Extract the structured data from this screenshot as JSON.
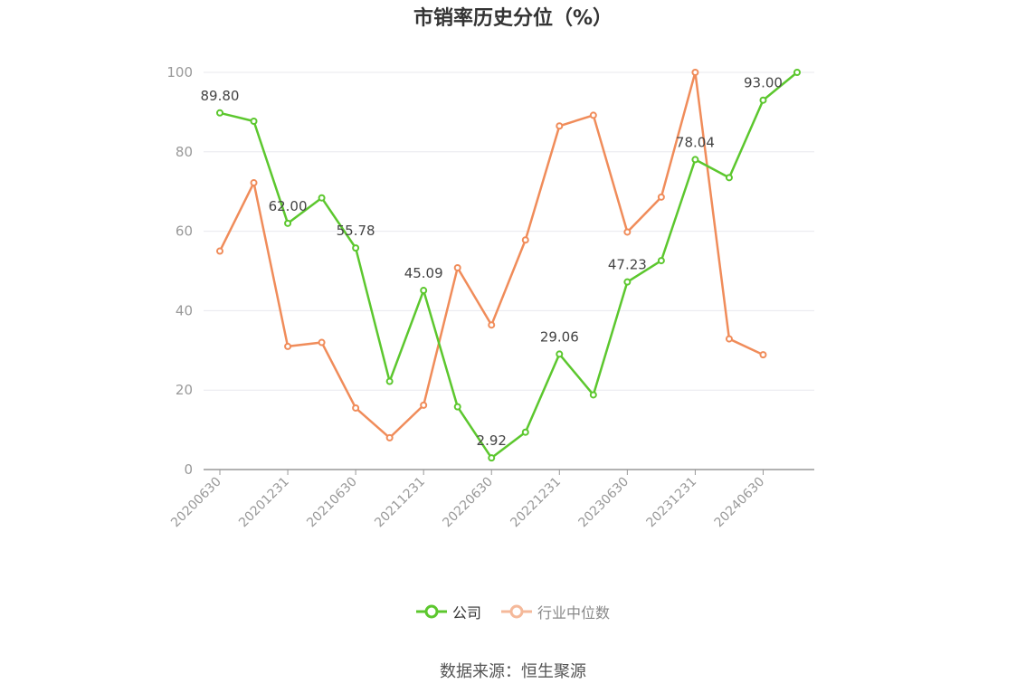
{
  "title": "市销率历史分位（%）",
  "source": "数据来源：恒生聚源",
  "colors": {
    "company": "#5cc72e",
    "industry": "#f08c5a",
    "industry_legend": "#f5b99a",
    "grid": "#e8e8ee",
    "axis": "#999999",
    "tick_text": "#999999",
    "label_text": "#444444"
  },
  "chart_data": {
    "type": "line",
    "title": "市销率历史分位（%）",
    "ylim": [
      0,
      100
    ],
    "yticks": [
      0,
      20,
      40,
      60,
      80,
      100
    ],
    "x": [
      "20200630",
      "20200930",
      "20201231",
      "20210331",
      "20210630",
      "20210930",
      "20211231",
      "20220331",
      "20220630",
      "20220930",
      "20221231",
      "20230331",
      "20230630",
      "20230930",
      "20231231",
      "20240331",
      "20240630",
      "20240930"
    ],
    "xtick_labels": [
      "20200630",
      "20201231",
      "20210630",
      "20211231",
      "20220630",
      "20221231",
      "20230630",
      "20231231",
      "20240630"
    ],
    "grid": true,
    "legend_position": "bottom",
    "series": [
      {
        "name": "公司",
        "values": [
          89.8,
          87.7,
          62.0,
          68.4,
          55.78,
          22.2,
          45.09,
          15.8,
          2.92,
          9.4,
          29.06,
          18.8,
          47.23,
          52.6,
          78.04,
          73.5,
          93.0,
          100.0
        ],
        "labels": [
          "89.80",
          null,
          "62.00",
          null,
          "55.78",
          null,
          "45.09",
          null,
          "2.92",
          null,
          "29.06",
          null,
          "47.23",
          null,
          "78.04",
          null,
          "93.00",
          null
        ]
      },
      {
        "name": "行业中位数",
        "values": [
          55.0,
          72.2,
          31.0,
          32.0,
          15.5,
          8.0,
          16.2,
          50.8,
          36.4,
          57.8,
          86.5,
          89.2,
          59.8,
          68.6,
          100.0,
          32.9,
          28.9,
          null
        ]
      }
    ]
  }
}
